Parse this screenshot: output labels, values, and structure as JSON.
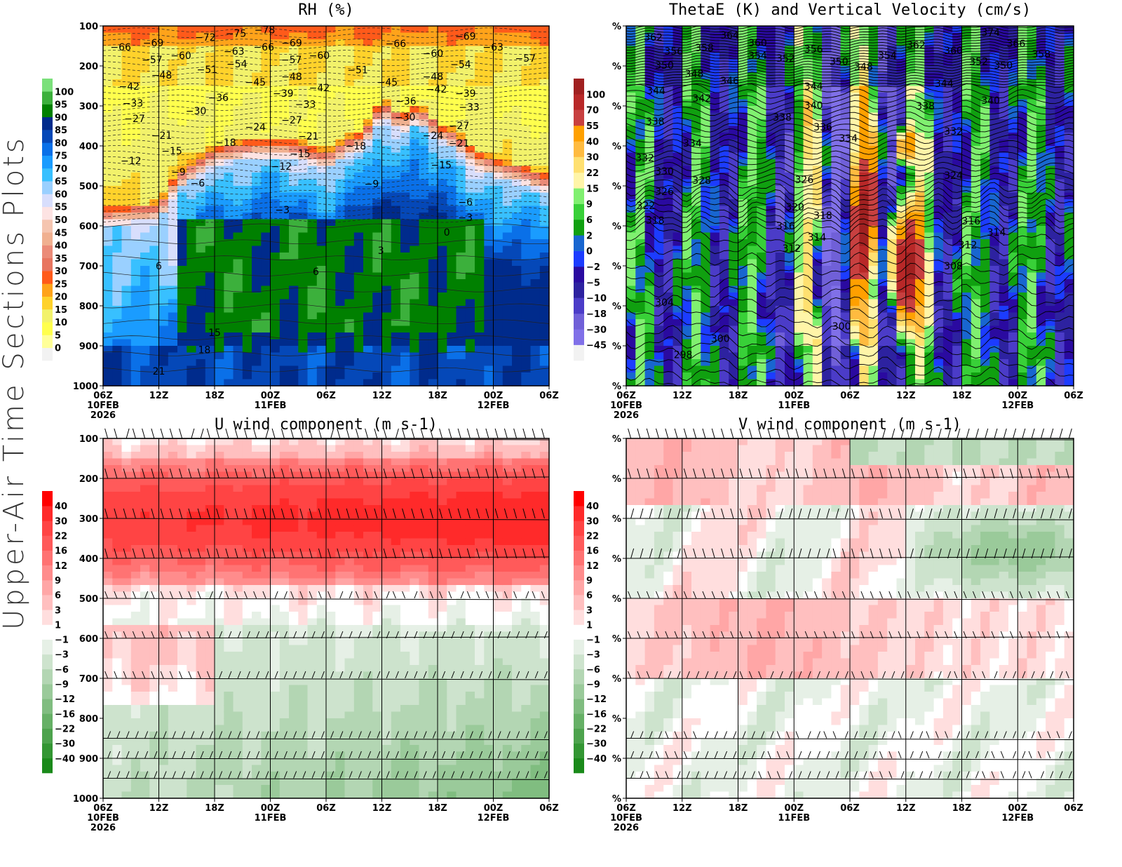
{
  "side_title": "Upper-Air Time Sections Plots",
  "time_axis": {
    "range_hours": [
      0,
      48
    ],
    "ticks": [
      {
        "h": 0,
        "label": "06Z",
        "sub": "10FEB",
        "sub2": "2026"
      },
      {
        "h": 6,
        "label": "12Z"
      },
      {
        "h": 12,
        "label": "18Z"
      },
      {
        "h": 18,
        "label": "00Z",
        "sub": "11FEB"
      },
      {
        "h": 24,
        "label": "06Z"
      },
      {
        "h": 30,
        "label": "12Z"
      },
      {
        "h": 36,
        "label": "18Z"
      },
      {
        "h": 42,
        "label": "00Z",
        "sub": "12FEB"
      },
      {
        "h": 48,
        "label": "06Z"
      }
    ]
  },
  "chart_data": [
    {
      "id": "rh",
      "type": "heatmap",
      "title": "RH (%)",
      "ylim": [
        1000,
        100
      ],
      "y_ticks": [
        "100",
        "200",
        "300",
        "400",
        "500",
        "600",
        "700",
        "800",
        "900",
        "1000"
      ],
      "colorbar": {
        "labels": [
          "0",
          "5",
          "10",
          "15",
          "20",
          "25",
          "30",
          "35",
          "40",
          "45",
          "50",
          "55",
          "60",
          "65",
          "70",
          "75",
          "80",
          "85",
          "90",
          "95",
          "100"
        ],
        "levels": [
          0,
          5,
          10,
          15,
          20,
          25,
          30,
          35,
          40,
          45,
          50,
          55,
          60,
          65,
          70,
          75,
          80,
          85,
          90,
          95,
          100
        ],
        "colors": [
          "#f2f2f2",
          "#ffff99",
          "#ffff4d",
          "#f2f26b",
          "#ffd22b",
          "#ffa31a",
          "#ff5a1a",
          "#e87560",
          "#eb8b78",
          "#f0b090",
          "#f5c5b0",
          "#fde3e3",
          "#d8defc",
          "#9ad0ff",
          "#38c0ff",
          "#1a9cff",
          "#0a70e8",
          "#0548b8",
          "#002b8c",
          "#008000",
          "#3cb03c",
          "#7be07b"
        ]
      },
      "contour_labels": [
        {
          "t": 1.9,
          "p": 153,
          "v": "-66"
        },
        {
          "t": 5.4,
          "p": 142,
          "v": "-69"
        },
        {
          "t": 2.3,
          "p": 184,
          "v": "-57"
        },
        {
          "t": 5.4,
          "p": 174,
          "v": "-60"
        },
        {
          "t": 11,
          "p": 128,
          "v": "-72"
        },
        {
          "t": 14.3,
          "p": 118,
          "v": "-75"
        },
        {
          "t": 17.4,
          "p": 110,
          "v": "-78"
        },
        {
          "t": 14.1,
          "p": 163,
          "v": "-63"
        },
        {
          "t": 17.3,
          "p": 153,
          "v": "-66"
        },
        {
          "t": 20.3,
          "p": 142,
          "v": "-69"
        },
        {
          "t": 14.4,
          "p": 195,
          "v": "-54"
        },
        {
          "t": 17.3,
          "p": 184,
          "v": "-57"
        },
        {
          "t": 20.3,
          "p": 174,
          "v": "-60"
        },
        {
          "t": 11.2,
          "p": 209,
          "v": "-51"
        },
        {
          "t": 6.3,
          "p": 223,
          "v": "-48"
        },
        {
          "t": 4.3,
          "p": 251,
          "v": "-42"
        },
        {
          "t": 16.4,
          "p": 240,
          "v": "-45"
        },
        {
          "t": 16.4,
          "p": 268,
          "v": "-39"
        },
        {
          "t": 20.3,
          "p": 226,
          "v": "-48"
        },
        {
          "t": 20.3,
          "p": 254,
          "v": "-42"
        },
        {
          "t": 12.4,
          "p": 279,
          "v": "-36"
        },
        {
          "t": 3.2,
          "p": 293,
          "v": "-33"
        },
        {
          "t": 10,
          "p": 312,
          "v": "-30"
        },
        {
          "t": 3.4,
          "p": 332,
          "v": "-27"
        },
        {
          "t": 20.3,
          "p": 296,
          "v": "-33"
        },
        {
          "t": 16.4,
          "p": 353,
          "v": "-24"
        },
        {
          "t": 20.3,
          "p": 335,
          "v": "-27"
        },
        {
          "t": 6.3,
          "p": 374,
          "v": "-21"
        },
        {
          "t": 13.2,
          "p": 391,
          "v": "-18"
        },
        {
          "t": 22.1,
          "p": 375,
          "v": "-21"
        },
        {
          "t": 7.4,
          "p": 412,
          "v": "-15"
        },
        {
          "t": 21.2,
          "p": 419,
          "v": "-15"
        },
        {
          "t": 3,
          "p": 437,
          "v": "-12"
        },
        {
          "t": 8.1,
          "p": 465,
          "v": "-9"
        },
        {
          "t": 8,
          "p": 493,
          "v": "-6"
        },
        {
          "t": 19.2,
          "p": 451,
          "v": "-12"
        },
        {
          "t": 27.2,
          "p": 400,
          "v": "-18"
        },
        {
          "t": 27.4,
          "p": 210,
          "v": "-51"
        },
        {
          "t": 31.5,
          "p": 144,
          "v": "-66"
        },
        {
          "t": 30.6,
          "p": 240,
          "v": "-45"
        },
        {
          "t": 32.6,
          "p": 288,
          "v": "-36"
        },
        {
          "t": 32.5,
          "p": 328,
          "v": "-30"
        },
        {
          "t": 35.5,
          "p": 168,
          "v": "-60"
        },
        {
          "t": 35.5,
          "p": 196,
          "v": "-54"
        },
        {
          "t": 35.5,
          "p": 226,
          "v": "-48"
        },
        {
          "t": 34.4,
          "p": 258,
          "v": "-42"
        },
        {
          "t": 35.5,
          "p": 374,
          "v": "-24"
        },
        {
          "t": 38.3,
          "p": 349,
          "v": "-27"
        },
        {
          "t": 38.3,
          "p": 393,
          "v": "-21"
        },
        {
          "t": 36.4,
          "p": 447,
          "v": "-15"
        },
        {
          "t": 39,
          "p": 125,
          "v": "-69"
        },
        {
          "t": 39,
          "p": 153,
          "v": "-63"
        },
        {
          "t": 39.5,
          "p": 181,
          "v": "-57"
        },
        {
          "t": 39,
          "p": 268,
          "v": "-39"
        },
        {
          "t": 39.4,
          "p": 303,
          "v": "-33"
        },
        {
          "t": 28.9,
          "p": 495,
          "v": "-9"
        },
        {
          "t": 39,
          "p": 540,
          "v": "-6"
        },
        {
          "t": 39,
          "p": 579,
          "v": "-3"
        },
        {
          "t": 19.3,
          "p": 560,
          "v": "-3"
        },
        {
          "t": 37,
          "p": 616,
          "v": "0"
        },
        {
          "t": 29.9,
          "p": 661,
          "v": "3"
        },
        {
          "t": 6,
          "p": 700,
          "v": "6"
        },
        {
          "t": 22.9,
          "p": 714,
          "v": "6"
        },
        {
          "t": 12,
          "p": 867,
          "v": "15"
        },
        {
          "t": 10.9,
          "p": 910,
          "v": "18"
        },
        {
          "t": 6,
          "p": 963,
          "v": "21"
        }
      ]
    },
    {
      "id": "thetae",
      "type": "heatmap",
      "title": "ThetaE (K) and Vertical Velocity (cm/s)",
      "ylim": [
        1000,
        100
      ],
      "y_ticks": [
        "%",
        "%",
        "%",
        "%",
        "%",
        "%",
        "%",
        "%",
        "%",
        "%"
      ],
      "colorbar": {
        "labels": [
          "-45",
          "-30",
          "-18",
          "-10",
          "-5",
          "-2",
          "0",
          "2",
          "6",
          "9",
          "15",
          "22",
          "30",
          "40",
          "55",
          "70",
          "100"
        ],
        "levels": [
          -45,
          -30,
          -18,
          -10,
          -5,
          -2,
          0,
          2,
          6,
          9,
          15,
          22,
          30,
          40,
          55,
          70,
          100
        ],
        "colors": [
          "#f2f2f2",
          "#8070e8",
          "#7060d8",
          "#4b3cc8",
          "#2d22a0",
          "#2a0aa0",
          "#1c3cff",
          "#1866d0",
          "#10a010",
          "#38d038",
          "#80f070",
          "#fff5a8",
          "#ffe070",
          "#ffbb40",
          "#ffa000",
          "#c84040",
          "#b82828",
          "#a02020"
        ]
      },
      "contour_labels": [
        {
          "t": 2.9,
          "p": 128,
          "v": "362"
        },
        {
          "t": 11.1,
          "p": 123,
          "v": "364"
        },
        {
          "t": 14.1,
          "p": 142,
          "v": "360"
        },
        {
          "t": 5.1,
          "p": 163,
          "v": "356"
        },
        {
          "t": 11.1,
          "p": 154,
          "v": "358"
        },
        {
          "t": 14.1,
          "p": 174,
          "v": "354"
        },
        {
          "t": 17.1,
          "p": 181,
          "v": "352"
        },
        {
          "t": 20.1,
          "p": 158,
          "v": "356"
        },
        {
          "t": 20.1,
          "p": 189,
          "v": "350"
        },
        {
          "t": 4.1,
          "p": 198,
          "v": "350"
        },
        {
          "t": 24.1,
          "p": 202,
          "v": "348"
        },
        {
          "t": 7.3,
          "p": 219,
          "v": "348"
        },
        {
          "t": 11.1,
          "p": 237,
          "v": "346"
        },
        {
          "t": 3.2,
          "p": 261,
          "v": "344"
        },
        {
          "t": 20.1,
          "p": 251,
          "v": "344"
        },
        {
          "t": 8.1,
          "p": 281,
          "v": "342"
        },
        {
          "t": 20.1,
          "p": 298,
          "v": "340"
        },
        {
          "t": 3.1,
          "p": 339,
          "v": "338"
        },
        {
          "t": 18.1,
          "p": 328,
          "v": "338"
        },
        {
          "t": 21.1,
          "p": 353,
          "v": "336"
        },
        {
          "t": 21.1,
          "p": 381,
          "v": "334"
        },
        {
          "t": 7.1,
          "p": 393,
          "v": "334"
        },
        {
          "t": 2.0,
          "p": 430,
          "v": "332"
        },
        {
          "t": 4.1,
          "p": 463,
          "v": "330"
        },
        {
          "t": 8.1,
          "p": 486,
          "v": "328"
        },
        {
          "t": 4.1,
          "p": 514,
          "v": "326"
        },
        {
          "t": 19.1,
          "p": 484,
          "v": "326"
        },
        {
          "t": 35.1,
          "p": 474,
          "v": "324"
        },
        {
          "t": 2.1,
          "p": 549,
          "v": "322"
        },
        {
          "t": 18.1,
          "p": 553,
          "v": "320"
        },
        {
          "t": 3.1,
          "p": 586,
          "v": "318"
        },
        {
          "t": 21.1,
          "p": 574,
          "v": "318"
        },
        {
          "t": 17.1,
          "p": 600,
          "v": "316"
        },
        {
          "t": 37,
          "p": 588,
          "v": "316"
        },
        {
          "t": 19.1,
          "p": 628,
          "v": "314"
        },
        {
          "t": 37,
          "p": 616,
          "v": "314"
        },
        {
          "t": 19.1,
          "p": 656,
          "v": "312"
        },
        {
          "t": 38,
          "p": 647,
          "v": "312"
        },
        {
          "t": 35.1,
          "p": 700,
          "v": "308"
        },
        {
          "t": 4.1,
          "p": 791,
          "v": "304"
        },
        {
          "t": 23.1,
          "p": 851,
          "v": "300"
        },
        {
          "t": 10.1,
          "p": 882,
          "v": "300"
        },
        {
          "t": 6.1,
          "p": 922,
          "v": "298"
        },
        {
          "t": 31.1,
          "p": 147,
          "v": "362"
        },
        {
          "t": 35.1,
          "p": 161,
          "v": "360"
        },
        {
          "t": 32.1,
          "p": 174,
          "v": "354"
        },
        {
          "t": 35.1,
          "p": 189,
          "v": "352"
        },
        {
          "t": 39.1,
          "p": 116,
          "v": "374"
        },
        {
          "t": 39.1,
          "p": 144,
          "v": "366"
        },
        {
          "t": 39.1,
          "p": 170,
          "v": "358"
        },
        {
          "t": 39.1,
          "p": 198,
          "v": "350"
        },
        {
          "t": 34.1,
          "p": 244,
          "v": "344"
        },
        {
          "t": 39.1,
          "p": 286,
          "v": "340"
        },
        {
          "t": 32.1,
          "p": 300,
          "v": "338"
        },
        {
          "t": 35.1,
          "p": 363,
          "v": "332"
        }
      ]
    },
    {
      "id": "u",
      "type": "heatmap",
      "title": "U wind component (m s-1)",
      "ylim": [
        1000,
        100
      ],
      "y_ticks": [
        "100",
        "200",
        "300",
        "400",
        "500",
        "600",
        "700",
        "800",
        "900",
        "1000"
      ],
      "barb_levels_hpa": [
        100,
        200,
        300,
        400,
        500,
        600,
        700,
        850,
        900,
        950
      ],
      "colorbar": {
        "labels": [
          "-40",
          "-30",
          "-22",
          "-16",
          "-12",
          "-9",
          "-6",
          "-3",
          "-1",
          "1",
          "3",
          "6",
          "9",
          "12",
          "16",
          "22",
          "30",
          "40"
        ],
        "levels": [
          -40,
          -30,
          -22,
          -16,
          -12,
          -9,
          -6,
          -3,
          -1,
          1,
          3,
          6,
          9,
          12,
          16,
          22,
          30,
          40
        ],
        "colors": [
          "#1a8a1a",
          "#339633",
          "#4da34d",
          "#66b066",
          "#80bd80",
          "#9aca9a",
          "#b3d6b3",
          "#cde3cd",
          "#e6f0e6",
          "#ffffff",
          "#ffdede",
          "#ffbfbf",
          "#ffa6a6",
          "#ff8c8c",
          "#ff7373",
          "#ff5a5a",
          "#ff4444",
          "#ff2a2a",
          "#ff0000"
        ]
      }
    },
    {
      "id": "v",
      "type": "heatmap",
      "title": "V wind component (m s-1)",
      "ylim": [
        1000,
        100
      ],
      "y_ticks": [
        "%",
        "%",
        "%",
        "%",
        "%",
        "%",
        "%",
        "%",
        "%",
        "%"
      ],
      "barb_levels_hpa": [
        100,
        200,
        300,
        400,
        500,
        600,
        700,
        850,
        900,
        950
      ],
      "colorbar": {
        "labels": [
          "-40",
          "-30",
          "-22",
          "-16",
          "-12",
          "-9",
          "-6",
          "-3",
          "-1",
          "1",
          "3",
          "6",
          "9",
          "12",
          "16",
          "22",
          "30",
          "40"
        ],
        "levels": [
          -40,
          -30,
          -22,
          -16,
          -12,
          -9,
          -6,
          -3,
          -1,
          1,
          3,
          6,
          9,
          12,
          16,
          22,
          30,
          40
        ],
        "colors": [
          "#1a8a1a",
          "#339633",
          "#4da34d",
          "#66b066",
          "#80bd80",
          "#9aca9a",
          "#b3d6b3",
          "#cde3cd",
          "#e6f0e6",
          "#ffffff",
          "#ffdede",
          "#ffbfbf",
          "#ffa6a6",
          "#ff8c8c",
          "#ff7373",
          "#ff5a5a",
          "#ff4444",
          "#ff2a2a",
          "#ff0000"
        ]
      }
    }
  ]
}
